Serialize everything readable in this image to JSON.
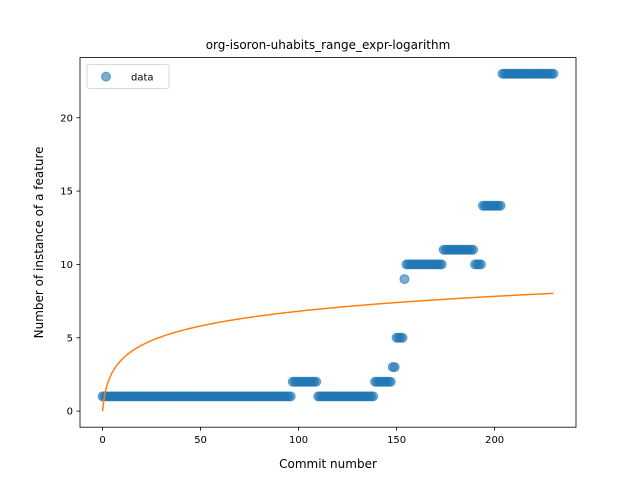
{
  "chart_data": {
    "type": "scatter",
    "title": "org-isoron-uhabits_range_expr-logarithm",
    "xlabel": "Commit number",
    "ylabel": "Number of instance of a feature",
    "xlim": [
      -11.5,
      241.5
    ],
    "ylim": [
      -1.1,
      24.1
    ],
    "xticks": [
      0,
      50,
      100,
      150,
      200
    ],
    "yticks": [
      0,
      5,
      10,
      15,
      20
    ],
    "grid": false,
    "legend": {
      "position": "top-left",
      "entries": [
        "data"
      ]
    },
    "colors": {
      "scatter": "#1f77b4",
      "fit_line": "#ff7f0e"
    },
    "series": [
      {
        "name": "data",
        "kind": "scatter",
        "segments": [
          {
            "x_start": 0,
            "x_end": 96,
            "y": 1
          },
          {
            "x_start": 97,
            "x_end": 109,
            "y": 2
          },
          {
            "x_start": 110,
            "x_end": 138,
            "y": 1
          },
          {
            "x_start": 139,
            "x_end": 147,
            "y": 2
          },
          {
            "x_start": 148,
            "x_end": 149,
            "y": 3
          },
          {
            "x_start": 150,
            "x_end": 153,
            "y": 5
          },
          {
            "x_start": 154,
            "x_end": 154,
            "y": 9
          },
          {
            "x_start": 155,
            "x_end": 173,
            "y": 10
          },
          {
            "x_start": 174,
            "x_end": 189,
            "y": 11
          },
          {
            "x_start": 190,
            "x_end": 193,
            "y": 10
          },
          {
            "x_start": 194,
            "x_end": 203,
            "y": 14
          },
          {
            "x_start": 204,
            "x_end": 230,
            "y": 23
          }
        ]
      },
      {
        "kind": "line",
        "model": "logarithmic",
        "a": 0.0,
        "b": 1.475,
        "x_range": [
          0,
          230
        ]
      }
    ]
  }
}
